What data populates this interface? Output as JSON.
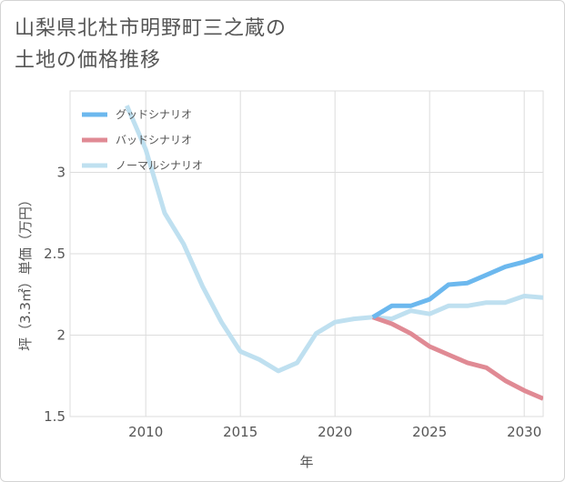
{
  "title_line1": "山梨県北杜市明野町三之蔵の",
  "title_line2": "土地の価格推移",
  "chart_data": {
    "type": "line",
    "xlabel": "年",
    "ylabel": "坪（3.3㎡）単価（万円）",
    "xlim": [
      2006,
      2031
    ],
    "ylim": [
      1.5,
      3.5
    ],
    "xticks": [
      2010,
      2015,
      2020,
      2025,
      2030
    ],
    "yticks": [
      1.5,
      2,
      2.5,
      3
    ],
    "ytick_labels": [
      "1.5",
      "2",
      "2.5",
      "3"
    ],
    "grid": true,
    "legend_position": "top-left",
    "series": [
      {
        "name": "グッドシナリオ",
        "color": "#6cb8ee",
        "x": [
          2022,
          2023,
          2024,
          2025,
          2026,
          2027,
          2028,
          2029,
          2030,
          2031
        ],
        "y": [
          2.11,
          2.18,
          2.18,
          2.22,
          2.31,
          2.32,
          2.37,
          2.42,
          2.45,
          2.49
        ]
      },
      {
        "name": "バッドシナリオ",
        "color": "#e08a94",
        "x": [
          2022,
          2023,
          2024,
          2025,
          2026,
          2027,
          2028,
          2029,
          2030,
          2031
        ],
        "y": [
          2.11,
          2.07,
          2.01,
          1.93,
          1.88,
          1.83,
          1.8,
          1.72,
          1.66,
          1.61
        ]
      },
      {
        "name": "ノーマルシナリオ",
        "color": "#bfe0f0",
        "x": [
          2009,
          2010,
          2011,
          2012,
          2013,
          2014,
          2015,
          2016,
          2017,
          2018,
          2019,
          2020,
          2021,
          2022,
          2023,
          2024,
          2025,
          2026,
          2027,
          2028,
          2029,
          2030,
          2031
        ],
        "y": [
          3.41,
          3.14,
          2.75,
          2.56,
          2.3,
          2.08,
          1.9,
          1.85,
          1.78,
          1.83,
          2.01,
          2.08,
          2.1,
          2.11,
          2.1,
          2.15,
          2.13,
          2.18,
          2.18,
          2.2,
          2.2,
          2.24,
          2.23
        ]
      }
    ]
  }
}
